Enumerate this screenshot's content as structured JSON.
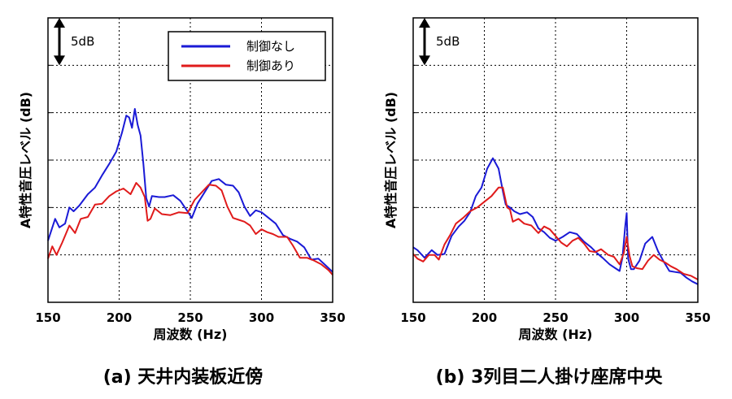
{
  "chart_data": [
    {
      "type": "line",
      "caption": "(a) 天井内装板近傍",
      "xlabel": "周波数 (Hz)",
      "ylabel": "A特性音圧レベル (dB)",
      "x_ticks": [
        "150",
        "200",
        "250",
        "300",
        "350"
      ],
      "xlim": [
        150,
        350
      ],
      "ylim": [
        0,
        30
      ],
      "y_grid_step": 5,
      "grid": true,
      "scale_bar_label": "5dB",
      "scale_bar_range": [
        25,
        30
      ],
      "legend": {
        "position": "top-right",
        "entries": [
          "制御なし",
          "制御あり"
        ]
      },
      "series": [
        {
          "name": "制御なし",
          "color": "#1a1ad6",
          "x": [
            150,
            155,
            158,
            162,
            165,
            168,
            172,
            178,
            183,
            188,
            193,
            198,
            202,
            205,
            207,
            209,
            211,
            213,
            215,
            217,
            219,
            221,
            223,
            228,
            232,
            238,
            243,
            248,
            251,
            255,
            260,
            265,
            270,
            275,
            280,
            284,
            288,
            292,
            296,
            300,
            305,
            310,
            315,
            320,
            325,
            330,
            335,
            340,
            345,
            350
          ],
          "y": [
            6.5,
            8.8,
            7.9,
            8.3,
            10.0,
            9.6,
            10.2,
            11.4,
            12.1,
            13.4,
            14.6,
            15.9,
            17.9,
            19.7,
            19.5,
            18.4,
            20.4,
            18.7,
            17.6,
            14.6,
            11.0,
            10.1,
            11.2,
            11.1,
            11.1,
            11.3,
            10.7,
            9.6,
            8.9,
            10.4,
            11.6,
            12.8,
            13.0,
            12.4,
            12.3,
            11.6,
            10.1,
            9.1,
            9.7,
            9.5,
            8.9,
            8.3,
            7.1,
            6.7,
            6.4,
            5.8,
            4.5,
            4.6,
            3.9,
            3.2
          ]
        },
        {
          "name": "制御あり",
          "color": "#e01b1b",
          "x": [
            150,
            153,
            156,
            160,
            165,
            169,
            173,
            178,
            183,
            188,
            193,
            198,
            203,
            208,
            212,
            215,
            218,
            220,
            222,
            225,
            230,
            236,
            242,
            248,
            253,
            258,
            263,
            268,
            272,
            276,
            280,
            284,
            288,
            292,
            296,
            300,
            304,
            308,
            312,
            318,
            322,
            327,
            332,
            337,
            342,
            347,
            350
          ],
          "y": [
            4.6,
            5.9,
            5.0,
            6.3,
            8.1,
            7.3,
            8.8,
            9.0,
            10.3,
            10.4,
            11.2,
            11.7,
            12.0,
            11.4,
            12.6,
            12.1,
            11.1,
            8.6,
            8.8,
            9.9,
            9.3,
            9.2,
            9.5,
            9.4,
            10.8,
            11.6,
            12.4,
            12.3,
            11.8,
            10.1,
            8.9,
            8.7,
            8.5,
            8.1,
            7.2,
            7.7,
            7.4,
            7.2,
            6.9,
            6.9,
            6.0,
            4.7,
            4.7,
            4.4,
            4.0,
            3.4,
            2.9
          ]
        }
      ]
    },
    {
      "type": "line",
      "caption": "(b) 3列目二人掛け座席中央",
      "xlabel": "周波数 (Hz)",
      "ylabel": "A特性音圧レベル (dB)",
      "x_ticks": [
        "150",
        "200",
        "250",
        "300",
        "350"
      ],
      "xlim": [
        150,
        350
      ],
      "ylim": [
        0,
        30
      ],
      "y_grid_step": 5,
      "grid": true,
      "scale_bar_label": "5dB",
      "scale_bar_range": [
        25,
        30
      ],
      "series": [
        {
          "name": "制御なし",
          "color": "#1a1ad6",
          "x": [
            150,
            153,
            158,
            163,
            167,
            172,
            177,
            182,
            186,
            190,
            194,
            198,
            202,
            206,
            210,
            213,
            215,
            218,
            221,
            225,
            230,
            234,
            238,
            242,
            246,
            250,
            255,
            260,
            265,
            270,
            275,
            279,
            283,
            288,
            292,
            295,
            297,
            299,
            300,
            301,
            303,
            305,
            309,
            313,
            318,
            322,
            326,
            330,
            334,
            338,
            342,
            346,
            350
          ],
          "y": [
            5.8,
            5.5,
            4.7,
            5.5,
            5.0,
            5.1,
            7.0,
            8.0,
            8.6,
            9.5,
            11.2,
            12.1,
            14.1,
            15.2,
            14.1,
            11.7,
            10.3,
            10.0,
            9.6,
            9.3,
            9.5,
            9.0,
            7.8,
            7.4,
            6.8,
            6.5,
            6.9,
            7.4,
            7.2,
            6.4,
            5.8,
            5.2,
            4.7,
            4.0,
            3.6,
            3.3,
            4.7,
            8.1,
            9.4,
            4.6,
            3.5,
            3.5,
            4.4,
            6.2,
            6.9,
            5.4,
            4.3,
            3.3,
            3.2,
            3.1,
            2.6,
            2.2,
            1.9
          ]
        },
        {
          "name": "制御あり",
          "color": "#e01b1b",
          "x": [
            150,
            153,
            157,
            161,
            165,
            168,
            172,
            176,
            180,
            185,
            190,
            195,
            200,
            205,
            210,
            213,
            216,
            218,
            220,
            224,
            228,
            233,
            238,
            242,
            246,
            250,
            254,
            258,
            262,
            266,
            270,
            274,
            278,
            282,
            287,
            291,
            295,
            298,
            300,
            302,
            304,
            307,
            311,
            315,
            319,
            323,
            327,
            331,
            335,
            340,
            345,
            350
          ],
          "y": [
            5.1,
            4.6,
            4.3,
            5.0,
            5.0,
            4.5,
            6.1,
            7.1,
            8.3,
            8.9,
            9.6,
            10.0,
            10.6,
            11.2,
            12.1,
            12.1,
            10.0,
            9.8,
            8.5,
            8.8,
            8.3,
            8.1,
            7.3,
            8.0,
            7.7,
            7.0,
            6.3,
            5.9,
            6.5,
            6.8,
            6.2,
            5.4,
            5.3,
            5.6,
            5.0,
            4.8,
            4.0,
            5.2,
            6.9,
            4.9,
            3.8,
            3.6,
            3.5,
            4.4,
            5.0,
            4.5,
            4.2,
            3.8,
            3.5,
            3.0,
            2.8,
            2.4
          ]
        }
      ]
    }
  ]
}
